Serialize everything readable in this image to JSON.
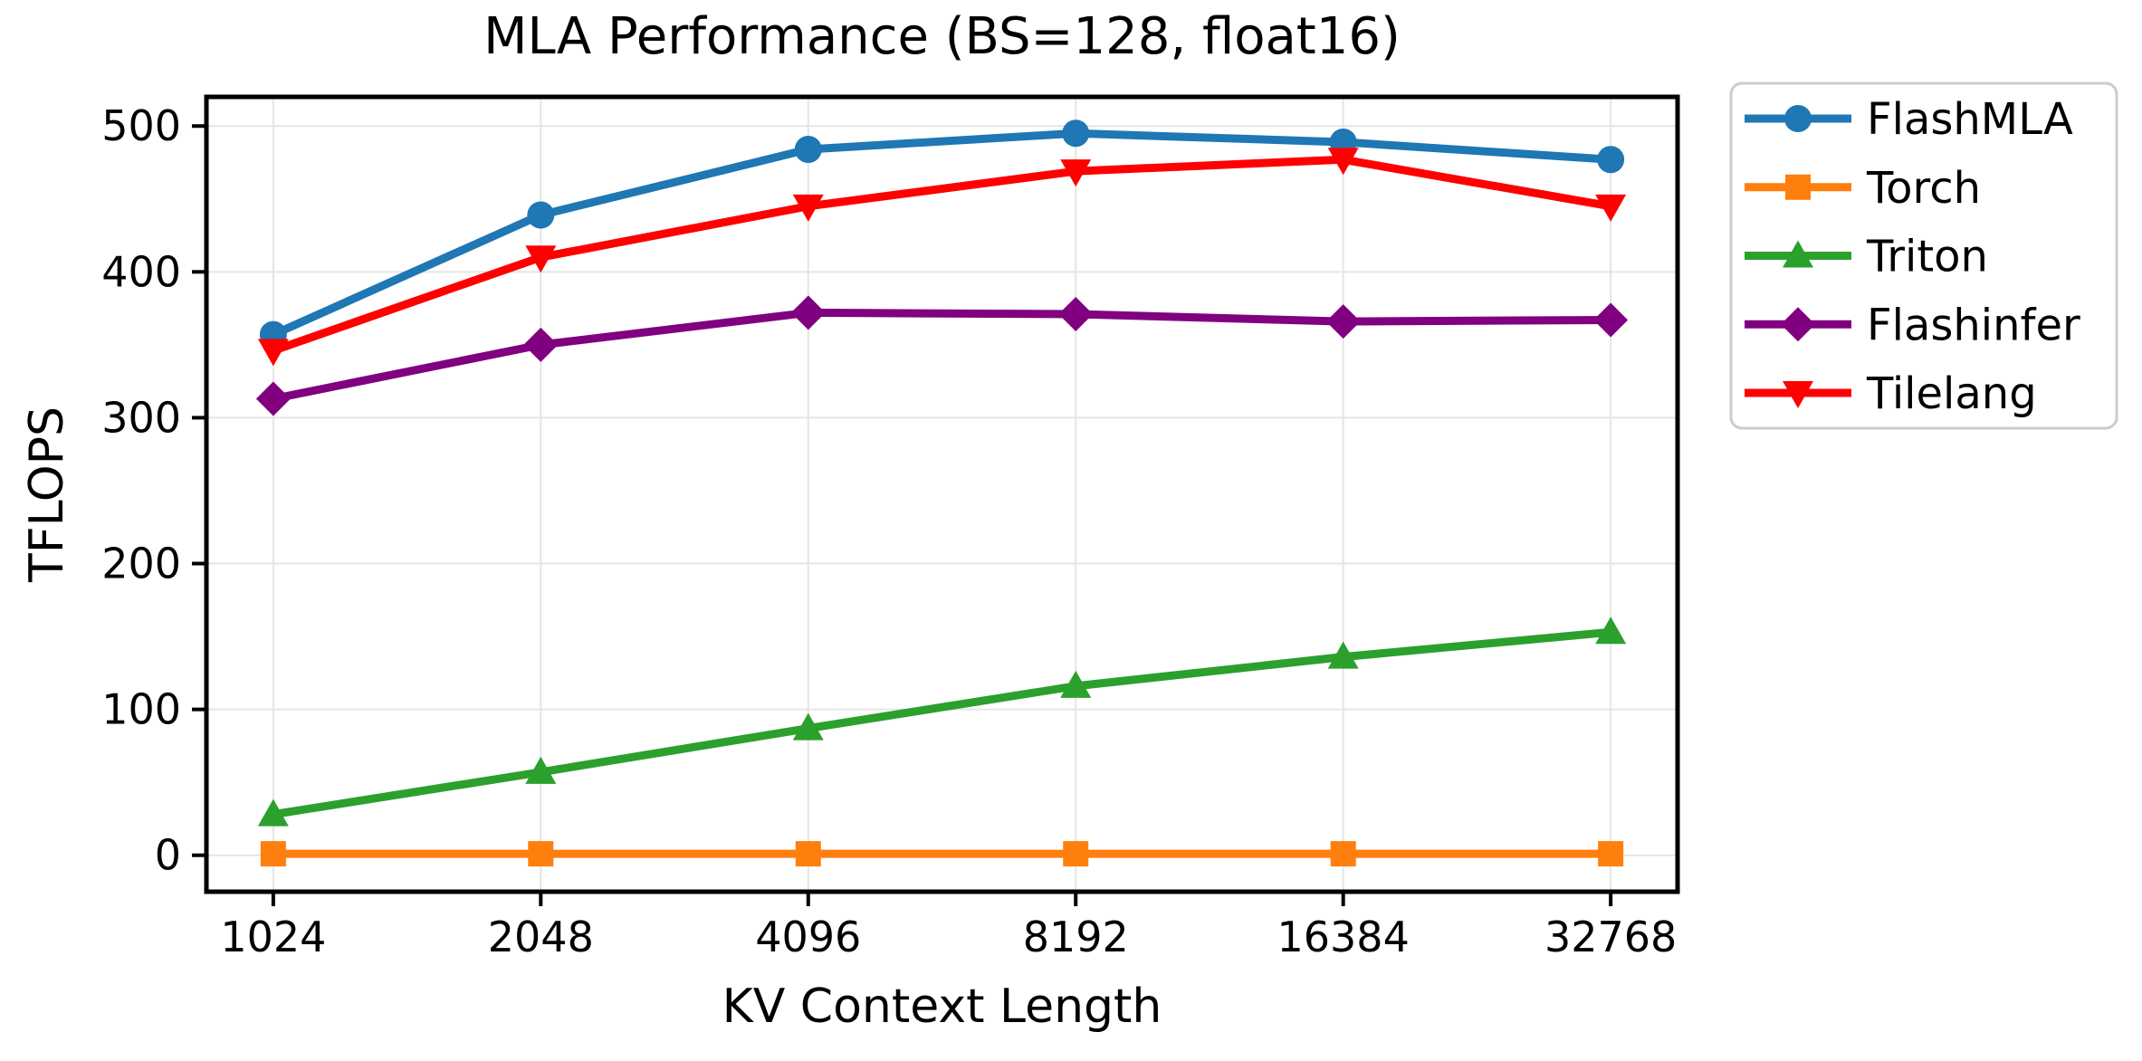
{
  "chart_data": {
    "type": "line",
    "title": "MLA Performance (BS=128, float16)",
    "xlabel": "KV Context Length",
    "ylabel": "TFLOPS",
    "x_scale": "log2-categorical",
    "categories": [
      "1024",
      "2048",
      "4096",
      "8192",
      "16384",
      "32768"
    ],
    "yticks": [
      0,
      100,
      200,
      300,
      400,
      500
    ],
    "ylim": [
      -25,
      520
    ],
    "x_margin_steps": 0.25,
    "grid": true,
    "legend_position": "outside-right-top",
    "series": [
      {
        "name": "FlashMLA",
        "color": "#1f77b4",
        "marker": "circle",
        "values": [
          357,
          439,
          484,
          495,
          489,
          477
        ]
      },
      {
        "name": "Torch",
        "color": "#ff7f0e",
        "marker": "square",
        "values": [
          1,
          1,
          1,
          1,
          1,
          1
        ]
      },
      {
        "name": "Triton",
        "color": "#2ca02c",
        "marker": "triangle-up",
        "values": [
          28,
          57,
          87,
          116,
          136,
          153
        ]
      },
      {
        "name": "Flashinfer",
        "color": "#800080",
        "marker": "diamond",
        "values": [
          313,
          350,
          372,
          371,
          366,
          367
        ]
      },
      {
        "name": "Tilelang",
        "color": "#ff0000",
        "marker": "triangle-down",
        "values": [
          346,
          410,
          445,
          469,
          477,
          445
        ]
      }
    ],
    "style": {
      "grid_color": "#e5e5e5",
      "spine_color": "#000000",
      "legend_border_color": "#cccccc",
      "legend_bg_color": "#ffffff"
    }
  }
}
